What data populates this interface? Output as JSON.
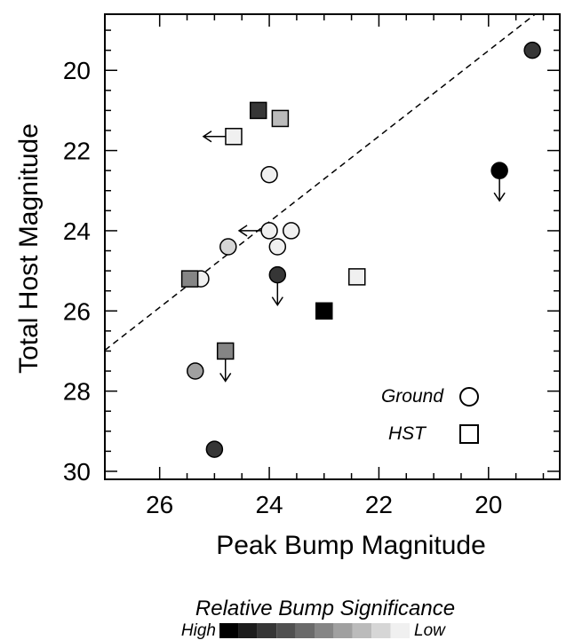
{
  "chart_data": {
    "type": "scatter",
    "xlabel": "Peak Bump Magnitude",
    "ylabel": "Total Host Magnitude",
    "xlim": [
      27,
      18.7
    ],
    "ylim": [
      30.2,
      18.6
    ],
    "x_axis_reversed": true,
    "y_axis_reversed": true,
    "x_ticks": [
      26,
      24,
      22,
      20
    ],
    "y_ticks": [
      20,
      22,
      24,
      26,
      28,
      30
    ],
    "x_tick_labels": [
      "26",
      "24",
      "22",
      "20"
    ],
    "y_tick_labels": [
      "20",
      "22",
      "24",
      "26",
      "28",
      "30"
    ],
    "grid": false,
    "reference_line": {
      "style": "dashed",
      "from": [
        27,
        26.98
      ],
      "to": [
        19.15,
        18.6
      ]
    },
    "legend": {
      "placement": "bottom-right",
      "entries": [
        {
          "label": "Ground",
          "marker": "circle"
        },
        {
          "label": "HST",
          "marker": "square"
        }
      ]
    },
    "color_scale": {
      "title": "Relative Bump Significance",
      "high_label": "High",
      "low_label": "Low",
      "shades": [
        "#000000",
        "#1c1c1c",
        "#363636",
        "#505050",
        "#6a6a6a",
        "#858585",
        "#a0a0a0",
        "#bbbbbb",
        "#d6d6d6",
        "#f0f0f0"
      ]
    },
    "series": [
      {
        "marker": "circle",
        "points": [
          {
            "x": 19.2,
            "y": 19.5,
            "shade": 2
          },
          {
            "x": 19.8,
            "y": 22.5,
            "shade": 0,
            "limit": "down"
          },
          {
            "x": 24.0,
            "y": 22.6,
            "shade": 9
          },
          {
            "x": 24.0,
            "y": 24.0,
            "shade": 9,
            "limit": "left"
          },
          {
            "x": 23.6,
            "y": 24.0,
            "shade": 9
          },
          {
            "x": 23.85,
            "y": 24.4,
            "shade": 9
          },
          {
            "x": 24.75,
            "y": 24.4,
            "shade": 8
          },
          {
            "x": 23.85,
            "y": 25.1,
            "shade": 2,
            "limit": "down"
          },
          {
            "x": 25.25,
            "y": 25.2,
            "shade": 9
          },
          {
            "x": 25.35,
            "y": 27.5,
            "shade": 6
          },
          {
            "x": 25.0,
            "y": 29.45,
            "shade": 2
          }
        ]
      },
      {
        "marker": "square",
        "points": [
          {
            "x": 24.2,
            "y": 21.0,
            "shade": 2
          },
          {
            "x": 23.8,
            "y": 21.2,
            "shade": 7
          },
          {
            "x": 24.65,
            "y": 21.65,
            "shade": 9,
            "limit": "left"
          },
          {
            "x": 25.45,
            "y": 25.2,
            "shade": 5
          },
          {
            "x": 22.4,
            "y": 25.15,
            "shade": 9
          },
          {
            "x": 23.0,
            "y": 26.0,
            "shade": 0
          },
          {
            "x": 24.8,
            "y": 27.0,
            "shade": 5,
            "limit": "down"
          }
        ]
      }
    ]
  }
}
